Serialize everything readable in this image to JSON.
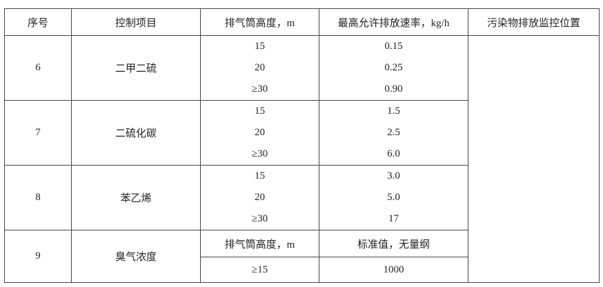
{
  "header": [
    "序号",
    "控制项目",
    "排气筒高度，m",
    "最高允许排放速率，kg/h",
    "污染物排放监控位置"
  ],
  "groups": [
    {
      "no": "6",
      "item": "二甲二硫",
      "rows": [
        [
          "15",
          "0.15"
        ],
        [
          "20",
          "0.25"
        ],
        [
          "≥30",
          "0.90"
        ]
      ]
    },
    {
      "no": "7",
      "item": "二硫化碳",
      "rows": [
        [
          "15",
          "1.5"
        ],
        [
          "20",
          "2.5"
        ],
        [
          "≥30",
          "6.0"
        ]
      ]
    },
    {
      "no": "8",
      "item": "苯乙烯",
      "rows": [
        [
          "15",
          "3.0"
        ],
        [
          "20",
          "5.0"
        ],
        [
          "≥30",
          "17"
        ]
      ]
    },
    {
      "no": "9",
      "item": "臭气浓度",
      "rows": [
        [
          "排气筒高度，m",
          "标准值，无量纲"
        ],
        [
          "≥15",
          "1000"
        ]
      ]
    }
  ],
  "monitor_location": ""
}
